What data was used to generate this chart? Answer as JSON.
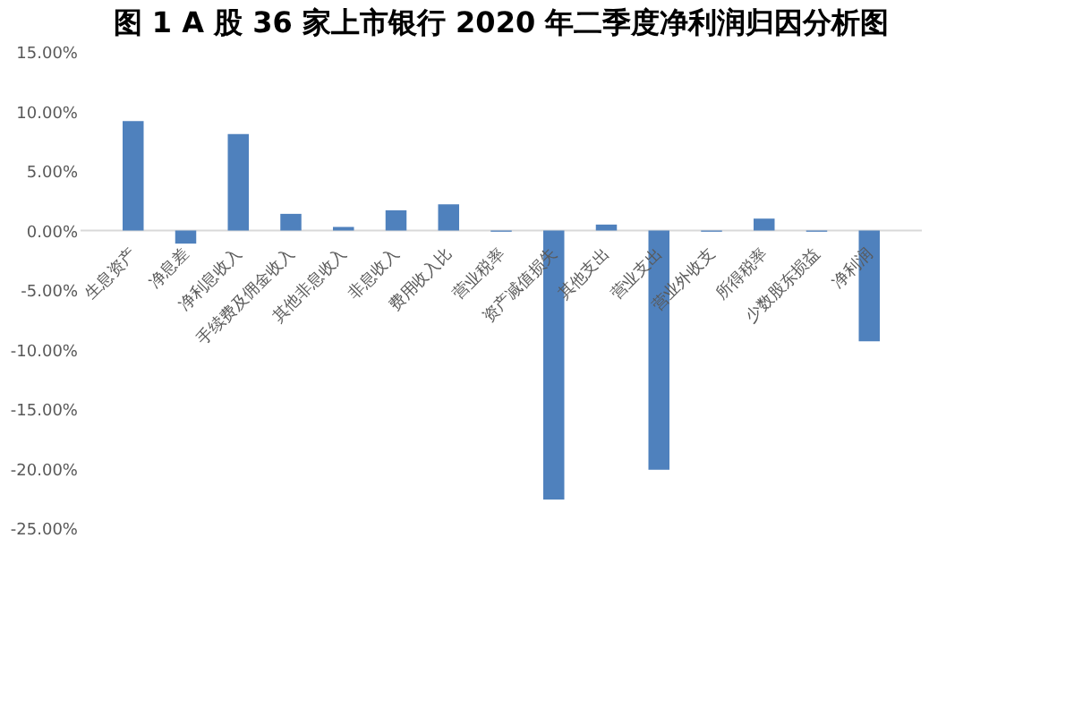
{
  "chart_data": {
    "type": "bar",
    "title": "图 1 A 股 36 家上市银行 2020 年二季度净利润归因分析图",
    "categories": [
      "生息资产",
      "净息差",
      "净利息收入",
      "手续费及佣金收入",
      "其他非息收入",
      "非息收入",
      "费用收入比",
      "营业税率",
      "资产减值损失",
      "其他支出",
      "营业支出",
      "营业外收支",
      "所得税率",
      "少数股东损益",
      "净利润"
    ],
    "values": [
      9.2,
      -1.1,
      8.1,
      1.4,
      0.3,
      1.7,
      2.2,
      -0.1,
      -22.6,
      0.5,
      -20.1,
      -0.1,
      1.0,
      -0.1,
      -9.3
    ],
    "color": "#4f81bd",
    "ylim": [
      -25,
      15
    ],
    "yticks": [
      {
        "value": -25,
        "label": "-25.00%"
      },
      {
        "value": -20,
        "label": "-20.00%"
      },
      {
        "value": -15,
        "label": "-15.00%"
      },
      {
        "value": -10,
        "label": "-10.00%"
      },
      {
        "value": -5,
        "label": "-5.00%"
      },
      {
        "value": 0,
        "label": "0.00%"
      },
      {
        "value": 5,
        "label": "5.00%"
      },
      {
        "value": 10,
        "label": "10.00%"
      },
      {
        "value": 15,
        "label": "15.00%"
      }
    ],
    "grid": false
  }
}
